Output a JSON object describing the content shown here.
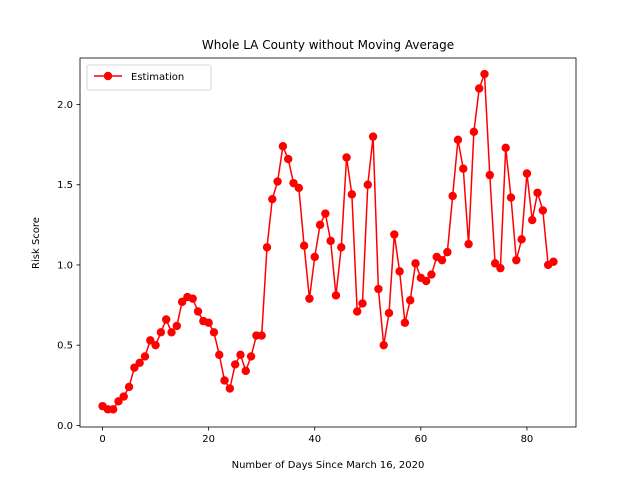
{
  "chart_data": {
    "type": "line",
    "title": "Whole LA County without Moving Average",
    "xlabel": "Number of Days Since March 16, 2020",
    "ylabel": "Risk Score",
    "xlim": [
      -4.25,
      89.25
    ],
    "ylim": [
      -0.01,
      2.29
    ],
    "xticks": [
      0,
      20,
      40,
      60,
      80
    ],
    "xtick_labels": [
      "0",
      "20",
      "40",
      "60",
      "80"
    ],
    "yticks": [
      0.0,
      0.5,
      1.0,
      1.5,
      2.0
    ],
    "ytick_labels": [
      "0.0",
      "0.5",
      "1.0",
      "1.5",
      "2.0"
    ],
    "grid": false,
    "legend_position": "upper-left",
    "series": [
      {
        "name": "Estimation",
        "color": "#ff0000",
        "marker": "circle",
        "x": [
          0,
          1,
          2,
          3,
          4,
          5,
          6,
          7,
          8,
          9,
          10,
          11,
          12,
          13,
          14,
          15,
          16,
          17,
          18,
          19,
          20,
          21,
          22,
          23,
          24,
          25,
          26,
          27,
          28,
          29,
          30,
          31,
          32,
          33,
          34,
          35,
          36,
          37,
          38,
          39,
          40,
          41,
          42,
          43,
          44,
          45,
          46,
          47,
          48,
          49,
          50,
          51,
          52,
          53,
          54,
          55,
          56,
          57,
          58,
          59,
          60,
          61,
          62,
          63,
          64,
          65,
          66,
          67,
          68,
          69,
          70,
          71,
          72,
          73,
          74,
          75,
          76,
          77,
          78,
          79,
          80,
          81,
          82,
          83,
          84,
          85
        ],
        "y": [
          0.12,
          0.1,
          0.1,
          0.15,
          0.18,
          0.24,
          0.36,
          0.39,
          0.43,
          0.53,
          0.5,
          0.58,
          0.66,
          0.58,
          0.62,
          0.77,
          0.8,
          0.79,
          0.71,
          0.65,
          0.64,
          0.58,
          0.44,
          0.28,
          0.23,
          0.38,
          0.44,
          0.34,
          0.43,
          0.56,
          0.56,
          1.11,
          1.41,
          1.52,
          1.74,
          1.66,
          1.51,
          1.48,
          1.12,
          0.79,
          1.05,
          1.25,
          1.32,
          1.15,
          0.81,
          1.11,
          1.67,
          1.44,
          0.71,
          0.76,
          1.5,
          1.8,
          0.85,
          0.5,
          0.7,
          1.19,
          0.96,
          0.64,
          0.78,
          1.01,
          0.92,
          0.9,
          0.94,
          1.05,
          1.03,
          1.08,
          1.43,
          1.78,
          1.6,
          1.13,
          1.83,
          2.1,
          2.19,
          1.56,
          1.01,
          0.98,
          1.73,
          1.42,
          1.03,
          1.16,
          1.57,
          1.28,
          1.45,
          1.34,
          1.0,
          1.02
        ]
      }
    ]
  }
}
